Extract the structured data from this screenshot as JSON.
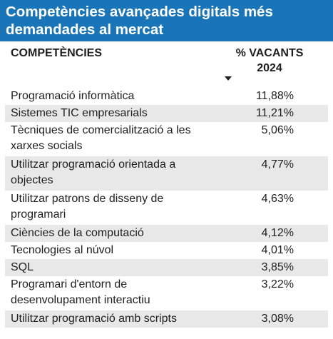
{
  "title": "Competències avançades digitals més demandades al mercat",
  "chart_data": {
    "type": "table",
    "columns": [
      "COMPETÈNCIES",
      "% VACANTS 2024"
    ],
    "sort": "descending",
    "rows": [
      {
        "name": "Programació informàtica",
        "value": "11,88%"
      },
      {
        "name": "Sistemes TIC empresarials",
        "value": "11,21%"
      },
      {
        "name": "Tècniques de comercialització a les xarxes socials",
        "value": "5,06%"
      },
      {
        "name": "Utilitzar programació orientada a objectes",
        "value": "4,77%"
      },
      {
        "name": "Utilitzar patrons de disseny de programari",
        "value": "4,63%"
      },
      {
        "name": "Ciències de la computació",
        "value": "4,12%"
      },
      {
        "name": "Tecnologies al núvol",
        "value": "4,01%"
      },
      {
        "name": "SQL",
        "value": "3,85%"
      },
      {
        "name": "Programari d'entorn de desenvolupament interactiu",
        "value": "3,22%"
      },
      {
        "name": "Utilitzar programació amb scripts",
        "value": "3,08%"
      }
    ]
  }
}
